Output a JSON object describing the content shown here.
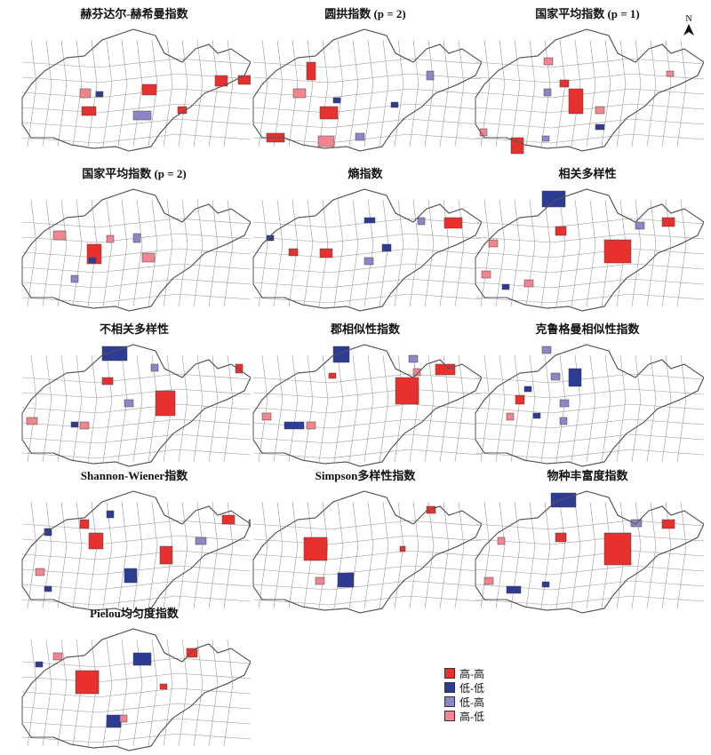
{
  "north_label": "N",
  "colors": {
    "high_high": "#e8302e",
    "low_low": "#2e3b94",
    "low_high": "#8b86c6",
    "high_low": "#f2858f"
  },
  "legend": [
    {
      "label": "高-高",
      "color": "#e8302e"
    },
    {
      "label": "低-低",
      "color": "#2e3b94"
    },
    {
      "label": "低-高",
      "color": "#8b86c6"
    },
    {
      "label": "高-低",
      "color": "#f2858f"
    }
  ],
  "panels": [
    {
      "title": "赫芬达尔-赫希曼指数",
      "regions": [
        [
          "hh",
          140,
          70,
          16,
          12
        ],
        [
          "hh",
          72,
          95,
          16,
          10
        ],
        [
          "hl",
          70,
          75,
          12,
          10
        ],
        [
          "ll",
          88,
          78,
          8,
          6
        ],
        [
          "lh",
          130,
          100,
          20,
          10
        ],
        [
          "hh",
          180,
          95,
          10,
          8
        ],
        [
          "hh",
          248,
          60,
          14,
          10
        ],
        [
          "hh",
          222,
          60,
          14,
          12
        ]
      ]
    },
    {
      "title": "圆拱指数 (p = 2)",
      "regions": [
        [
          "hh",
          80,
          95,
          20,
          14
        ],
        [
          "hh",
          65,
          45,
          10,
          20
        ],
        [
          "hl",
          50,
          75,
          14,
          10
        ],
        [
          "ll",
          95,
          85,
          8,
          6
        ],
        [
          "hh",
          20,
          125,
          20,
          10
        ],
        [
          "hl",
          78,
          128,
          18,
          12
        ],
        [
          "lh",
          120,
          125,
          10,
          8
        ],
        [
          "lh",
          200,
          55,
          8,
          10
        ],
        [
          "ll",
          160,
          90,
          8,
          6
        ]
      ]
    },
    {
      "title": "国家平均指数 (p = 1)",
      "regions": [
        [
          "hh",
          110,
          75,
          16,
          28
        ],
        [
          "hl",
          82,
          40,
          10,
          8
        ],
        [
          "lh",
          82,
          75,
          8,
          8
        ],
        [
          "hh",
          100,
          65,
          10,
          8
        ],
        [
          "hl",
          140,
          95,
          10,
          8
        ],
        [
          "ll",
          140,
          115,
          10,
          6
        ],
        [
          "hh",
          45,
          130,
          14,
          18
        ],
        [
          "hl",
          10,
          120,
          8,
          8
        ],
        [
          "lh",
          80,
          128,
          8,
          6
        ],
        [
          "hl",
          220,
          55,
          8,
          6
        ]
      ]
    },
    {
      "title": "国家平均指数 (p = 2)",
      "regions": [
        [
          "hh",
          78,
          70,
          16,
          22
        ],
        [
          "hl",
          40,
          55,
          14,
          10
        ],
        [
          "hl",
          100,
          60,
          8,
          8
        ],
        [
          "ll",
          80,
          85,
          8,
          6
        ],
        [
          "lh",
          60,
          105,
          8,
          8
        ],
        [
          "hl",
          140,
          80,
          14,
          10
        ],
        [
          "lh",
          130,
          58,
          8,
          10
        ]
      ]
    },
    {
      "title": "熵指数",
      "regions": [
        [
          "hh",
          220,
          40,
          20,
          12
        ],
        [
          "hh",
          80,
          75,
          14,
          10
        ],
        [
          "hh",
          45,
          75,
          10,
          8
        ],
        [
          "ll",
          130,
          40,
          12,
          6
        ],
        [
          "lh",
          190,
          40,
          8,
          8
        ],
        [
          "ll",
          150,
          70,
          10,
          8
        ],
        [
          "lh",
          130,
          85,
          10,
          8
        ],
        [
          "ll",
          20,
          60,
          8,
          6
        ]
      ]
    },
    {
      "title": "相关多样性",
      "regions": [
        [
          "ll",
          80,
          10,
          26,
          18
        ],
        [
          "hh",
          150,
          65,
          30,
          26
        ],
        [
          "hh",
          95,
          50,
          12,
          10
        ],
        [
          "hh",
          215,
          40,
          14,
          10
        ],
        [
          "lh",
          185,
          45,
          10,
          8
        ],
        [
          "hl",
          20,
          65,
          10,
          8
        ],
        [
          "hl",
          12,
          100,
          10,
          8
        ],
        [
          "hl",
          60,
          110,
          10,
          8
        ],
        [
          "ll",
          35,
          115,
          8,
          6
        ]
      ]
    },
    {
      "title": "不相关多样性",
      "regions": [
        [
          "ll",
          95,
          10,
          28,
          16
        ],
        [
          "hh",
          155,
          60,
          22,
          28
        ],
        [
          "hh",
          95,
          45,
          12,
          8
        ],
        [
          "lh",
          120,
          70,
          10,
          8
        ],
        [
          "hl",
          10,
          90,
          12,
          8
        ],
        [
          "hl",
          70,
          95,
          10,
          8
        ],
        [
          "ll",
          60,
          95,
          8,
          6
        ],
        [
          "hh",
          245,
          30,
          8,
          10
        ],
        [
          "lh",
          150,
          30,
          8,
          8
        ]
      ]
    },
    {
      "title": "郡相似性指数",
      "regions": [
        [
          "hh",
          165,
          45,
          26,
          30
        ],
        [
          "hh",
          210,
          30,
          22,
          12
        ],
        [
          "ll",
          95,
          10,
          18,
          18
        ],
        [
          "ll",
          40,
          95,
          22,
          8
        ],
        [
          "hl",
          15,
          85,
          10,
          8
        ],
        [
          "hl",
          65,
          95,
          10,
          8
        ],
        [
          "hh",
          90,
          40,
          8,
          6
        ],
        [
          "lh",
          180,
          20,
          10,
          8
        ],
        [
          "hl",
          185,
          35,
          8,
          8
        ]
      ]
    },
    {
      "title": "克鲁格曼相似性指数",
      "regions": [
        [
          "ll",
          110,
          35,
          14,
          20
        ],
        [
          "lh",
          80,
          10,
          10,
          8
        ],
        [
          "lh",
          90,
          40,
          10,
          8
        ],
        [
          "hh",
          50,
          65,
          10,
          10
        ],
        [
          "lh",
          100,
          70,
          10,
          8
        ],
        [
          "ll",
          70,
          85,
          8,
          6
        ],
        [
          "lh",
          100,
          90,
          8,
          8
        ],
        [
          "hl",
          40,
          85,
          8,
          8
        ],
        [
          "ll",
          60,
          55,
          8,
          6
        ]
      ]
    },
    {
      "title": "Shannon-Wiener指数",
      "regions": [
        [
          "hh",
          80,
          55,
          16,
          18
        ],
        [
          "hh",
          70,
          40,
          10,
          10
        ],
        [
          "hh",
          160,
          70,
          14,
          20
        ],
        [
          "hh",
          230,
          35,
          14,
          10
        ],
        [
          "lh",
          260,
          40,
          8,
          8
        ],
        [
          "lh",
          200,
          60,
          12,
          8
        ],
        [
          "ll",
          120,
          95,
          14,
          16
        ],
        [
          "hl",
          20,
          95,
          10,
          8
        ],
        [
          "ll",
          30,
          115,
          8,
          6
        ],
        [
          "ll",
          100,
          30,
          8,
          8
        ],
        [
          "ll",
          30,
          50,
          8,
          8
        ]
      ]
    },
    {
      "title": "Simpson多样性指数",
      "regions": [
        [
          "hh",
          62,
          60,
          26,
          26
        ],
        [
          "ll",
          100,
          100,
          18,
          16
        ],
        [
          "hl",
          75,
          105,
          10,
          8
        ],
        [
          "hh",
          200,
          25,
          10,
          8
        ],
        [
          "hh",
          170,
          70,
          6,
          6
        ]
      ]
    },
    {
      "title": "物种丰富度指数",
      "regions": [
        [
          "ll",
          90,
          10,
          28,
          16
        ],
        [
          "hh",
          150,
          55,
          30,
          36
        ],
        [
          "hh",
          95,
          55,
          12,
          10
        ],
        [
          "hh",
          215,
          40,
          14,
          10
        ],
        [
          "lh",
          180,
          40,
          12,
          8
        ],
        [
          "hl",
          30,
          60,
          8,
          8
        ],
        [
          "hl",
          15,
          105,
          10,
          8
        ],
        [
          "ll",
          40,
          115,
          16,
          8
        ],
        [
          "ll",
          80,
          110,
          8,
          6
        ]
      ]
    },
    {
      "title": "Pielou均匀度指数",
      "regions": [
        [
          "hh",
          65,
          55,
          26,
          26
        ],
        [
          "ll",
          130,
          35,
          20,
          14
        ],
        [
          "ll",
          100,
          105,
          16,
          14
        ],
        [
          "hl",
          115,
          105,
          8,
          8
        ],
        [
          "hl",
          40,
          35,
          10,
          8
        ],
        [
          "ll",
          20,
          45,
          8,
          6
        ],
        [
          "hh",
          190,
          30,
          12,
          10
        ],
        [
          "hh",
          160,
          70,
          8,
          6
        ]
      ]
    }
  ]
}
